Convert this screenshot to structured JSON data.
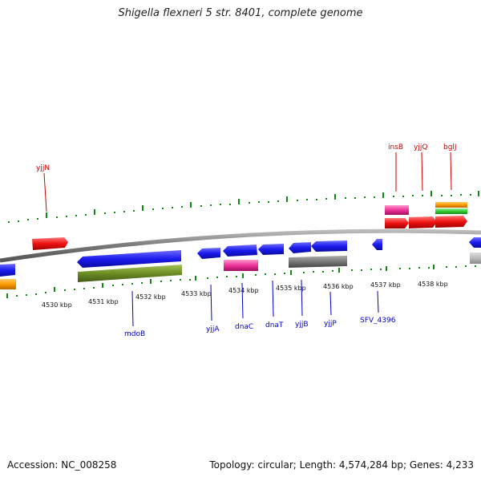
{
  "title": "Shigella flexneri 5 str. 8401, complete genome",
  "footer": {
    "accession": "Accession: NC_008258",
    "stats": "Topology: circular; Length: 4,574,284 bp; Genes: 4,233"
  },
  "colors": {
    "cds": "#1a1aee",
    "gene_red": "#ee1111",
    "insertion": "#ee3399",
    "pseudo": "#777777",
    "other_green": "#6b8e23",
    "orange": "#ff9900",
    "light_green": "#33cc33",
    "backbone": "#888888",
    "tick_green": "#118811",
    "label_blue": "#0000cc",
    "label_red": "#cc0000"
  },
  "scale_labels": [
    "4530 kbp",
    "4531 kbp",
    "4532 kbp",
    "4533 kbp",
    "4534 kbp",
    "4535 kbp",
    "4536 kbp",
    "4537 kbp",
    "4538 kbp"
  ],
  "top_genes": [
    "yjjN",
    "insB",
    "yjjQ",
    "bglJ"
  ],
  "bottom_genes": [
    "mdoB",
    "yjjA",
    "dnaC",
    "dnaT",
    "yjjB",
    "yjjP",
    "SFV_4396"
  ]
}
